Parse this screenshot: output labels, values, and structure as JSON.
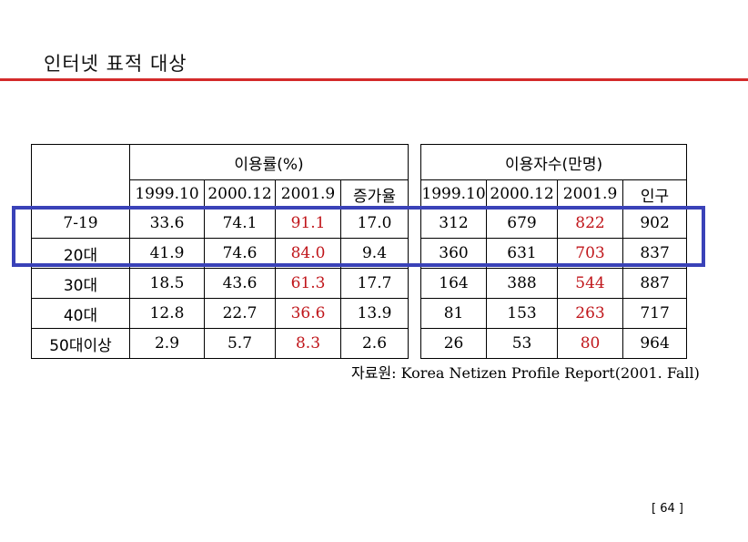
{
  "title": "인터넷 표적 대상",
  "table": {
    "group_usage_rate": "이용률(%)",
    "group_users": "이용자수(만명)",
    "subheaders_rate": [
      "1999.10",
      "2000.12",
      "2001.9",
      "증가율"
    ],
    "subheaders_users": [
      "1999.10",
      "2000.12",
      "2001.9",
      "인구"
    ],
    "rows": [
      {
        "label": "7-19",
        "rate": [
          "33.6",
          "74.1",
          "91.1",
          "17.0"
        ],
        "users": [
          "312",
          "679",
          "822",
          "902"
        ]
      },
      {
        "label": "20대",
        "rate": [
          "41.9",
          "74.6",
          "84.0",
          "9.4"
        ],
        "users": [
          "360",
          "631",
          "703",
          "837"
        ]
      },
      {
        "label": "30대",
        "rate": [
          "18.5",
          "43.6",
          "61.3",
          "17.7"
        ],
        "users": [
          "164",
          "388",
          "544",
          "887"
        ]
      },
      {
        "label": "40대",
        "rate": [
          "12.8",
          "22.7",
          "36.6",
          "13.9"
        ],
        "users": [
          "81",
          "153",
          "263",
          "717"
        ]
      },
      {
        "label": "50대이상",
        "rate": [
          "2.9",
          "5.7",
          "8.3",
          "2.6"
        ],
        "users": [
          "26",
          "53",
          "80",
          "964"
        ]
      }
    ]
  },
  "source_label": "자료원",
  "source_text": ": Korea Netizen Profile Report(2001. Fall)",
  "page_number": "[ 64 ]",
  "colors": {
    "accent_red": "#c0161b",
    "title_rule": "#d42a2a",
    "highlight_box": "#3a42b8"
  }
}
